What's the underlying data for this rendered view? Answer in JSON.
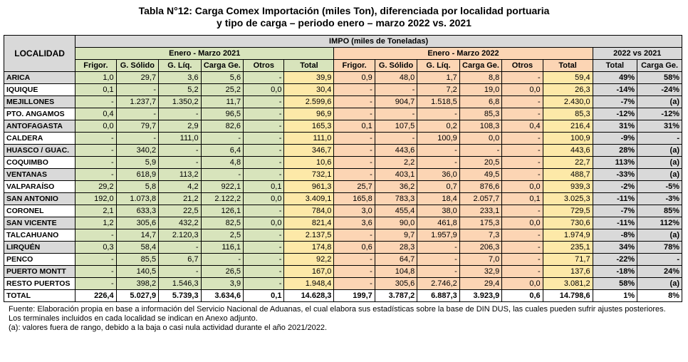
{
  "title_line1": "Tabla N°12: Carga Comex Importación (miles Ton), diferenciada por localidad portuaria",
  "title_line2": "y tipo de carga – periodo enero – marzo 2022 vs. 2021",
  "header": {
    "localidad": "LOCALIDAD",
    "impo": "IMPO (miles de Toneladas)",
    "period_2021": "Enero - Marzo 2021",
    "period_2022": "Enero - Marzo 2022",
    "comparison": "2022 vs 2021",
    "cols": [
      "Frigor.",
      "G. Sólido",
      "G. Líq.",
      "Carga Ge.",
      "Otros",
      "Total"
    ],
    "comp_cols": [
      "Total",
      "Carga Ge."
    ]
  },
  "rows": [
    {
      "loc": "ARICA",
      "a": [
        "1,0",
        "29,7",
        "3,6",
        "5,6",
        "-",
        "39,9"
      ],
      "b": [
        "0,9",
        "48,0",
        "1,7",
        "8,8",
        "-",
        "59,4"
      ],
      "c": [
        "49%",
        "58%"
      ]
    },
    {
      "loc": "IQUIQUE",
      "a": [
        "0,1",
        "-",
        "5,2",
        "25,2",
        "0,0",
        "30,4"
      ],
      "b": [
        "-",
        "-",
        "7,2",
        "19,0",
        "0,0",
        "26,3"
      ],
      "c": [
        "-14%",
        "-24%"
      ]
    },
    {
      "loc": "MEJILLONES",
      "a": [
        "-",
        "1.237,7",
        "1.350,2",
        "11,7",
        "-",
        "2.599,6"
      ],
      "b": [
        "-",
        "904,7",
        "1.518,5",
        "6,8",
        "-",
        "2.430,0"
      ],
      "c": [
        "-7%",
        "(a)"
      ]
    },
    {
      "loc": "PTO. ANGAMOS",
      "a": [
        "0,4",
        "-",
        "-",
        "96,5",
        "-",
        "96,9"
      ],
      "b": [
        "-",
        "-",
        "-",
        "85,3",
        "-",
        "85,3"
      ],
      "c": [
        "-12%",
        "-12%"
      ]
    },
    {
      "loc": "ANTOFAGASTA",
      "a": [
        "0,0",
        "79,7",
        "2,9",
        "82,6",
        "-",
        "165,3"
      ],
      "b": [
        "0,1",
        "107,5",
        "0,2",
        "108,3",
        "0,4",
        "216,4"
      ],
      "c": [
        "31%",
        "31%"
      ]
    },
    {
      "loc": "CALDERA",
      "a": [
        "-",
        "-",
        "111,0",
        "-",
        "-",
        "111,0"
      ],
      "b": [
        "-",
        "-",
        "100,9",
        "0,0",
        "-",
        "100,9"
      ],
      "c": [
        "-9%",
        "-"
      ]
    },
    {
      "loc": "HUASCO / GUAC.",
      "a": [
        "-",
        "340,2",
        "-",
        "6,4",
        "-",
        "346,7"
      ],
      "b": [
        "-",
        "443,6",
        "-",
        "-",
        "-",
        "443,6"
      ],
      "c": [
        "28%",
        "(a)"
      ]
    },
    {
      "loc": "COQUIMBO",
      "a": [
        "-",
        "5,9",
        "-",
        "4,8",
        "-",
        "10,6"
      ],
      "b": [
        "-",
        "2,2",
        "-",
        "20,5",
        "-",
        "22,7"
      ],
      "c": [
        "113%",
        "(a)"
      ]
    },
    {
      "loc": "VENTANAS",
      "a": [
        "-",
        "618,9",
        "113,2",
        "-",
        "-",
        "732,1"
      ],
      "b": [
        "-",
        "403,1",
        "36,0",
        "49,5",
        "-",
        "488,7"
      ],
      "c": [
        "-33%",
        "(a)"
      ]
    },
    {
      "loc": "VALPARAÍSO",
      "a": [
        "29,2",
        "5,8",
        "4,2",
        "922,1",
        "0,1",
        "961,3"
      ],
      "b": [
        "25,7",
        "36,2",
        "0,7",
        "876,6",
        "0,0",
        "939,3"
      ],
      "c": [
        "-2%",
        "-5%"
      ]
    },
    {
      "loc": "SAN ANTONIO",
      "a": [
        "192,0",
        "1.073,8",
        "21,2",
        "2.122,2",
        "0,0",
        "3.409,1"
      ],
      "b": [
        "165,8",
        "783,3",
        "18,4",
        "2.057,7",
        "0,1",
        "3.025,3"
      ],
      "c": [
        "-11%",
        "-3%"
      ]
    },
    {
      "loc": "CORONEL",
      "a": [
        "2,1",
        "633,3",
        "22,5",
        "126,1",
        "-",
        "784,0"
      ],
      "b": [
        "3,0",
        "455,4",
        "38,0",
        "233,1",
        "-",
        "729,5"
      ],
      "c": [
        "-7%",
        "85%"
      ]
    },
    {
      "loc": "SAN VICENTE",
      "a": [
        "1,2",
        "305,6",
        "432,2",
        "82,5",
        "0,0",
        "821,4"
      ],
      "b": [
        "3,6",
        "90,0",
        "461,8",
        "175,3",
        "0,0",
        "730,6"
      ],
      "c": [
        "-11%",
        "112%"
      ]
    },
    {
      "loc": "TALCAHUANO",
      "a": [
        "-",
        "14,7",
        "2.120,3",
        "2,5",
        "-",
        "2.137,5"
      ],
      "b": [
        "-",
        "9,7",
        "1.957,9",
        "7,3",
        "-",
        "1.974,9"
      ],
      "c": [
        "-8%",
        "(a)"
      ]
    },
    {
      "loc": "LIRQUÉN",
      "a": [
        "0,3",
        "58,4",
        "-",
        "116,1",
        "-",
        "174,8"
      ],
      "b": [
        "0,6",
        "28,3",
        "-",
        "206,3",
        "-",
        "235,1"
      ],
      "c": [
        "34%",
        "78%"
      ]
    },
    {
      "loc": "PENCO",
      "a": [
        "-",
        "85,5",
        "6,7",
        "-",
        "-",
        "92,2"
      ],
      "b": [
        "-",
        "64,7",
        "-",
        "7,0",
        "-",
        "71,7"
      ],
      "c": [
        "-22%",
        "-"
      ]
    },
    {
      "loc": "PUERTO MONTT",
      "a": [
        "-",
        "140,5",
        "-",
        "26,5",
        "-",
        "167,0"
      ],
      "b": [
        "-",
        "104,8",
        "-",
        "32,9",
        "-",
        "137,6"
      ],
      "c": [
        "-18%",
        "24%"
      ]
    },
    {
      "loc": "RESTO PUERTOS",
      "a": [
        "-",
        "398,2",
        "1.546,3",
        "3,9",
        "-",
        "1.948,4"
      ],
      "b": [
        "-",
        "305,6",
        "2.746,2",
        "29,4",
        "0,0",
        "3.081,2"
      ],
      "c": [
        "58%",
        "(a)"
      ]
    }
  ],
  "total": {
    "loc": "TOTAL",
    "a": [
      "226,4",
      "5.027,9",
      "5.739,3",
      "3.634,6",
      "0,1",
      "14.628,3"
    ],
    "b": [
      "199,7",
      "3.787,2",
      "6.887,3",
      "3.923,9",
      "0,6",
      "14.798,6"
    ],
    "c": [
      "1%",
      "8%"
    ]
  },
  "notes": [
    "Fuente: Elaboración propia en base a información del Servicio Nacional de Aduanas, el cual elabora sus estadísticas sobre la base de DIN DUS, las cuales pueden sufrir ajustes posteriores.",
    "Los terminales incluidos en cada localidad se indican en Anexo adjunto.",
    "(a): valores fuera de rango, debido a la baja o casi nula actividad durante el año 2021/2022."
  ]
}
